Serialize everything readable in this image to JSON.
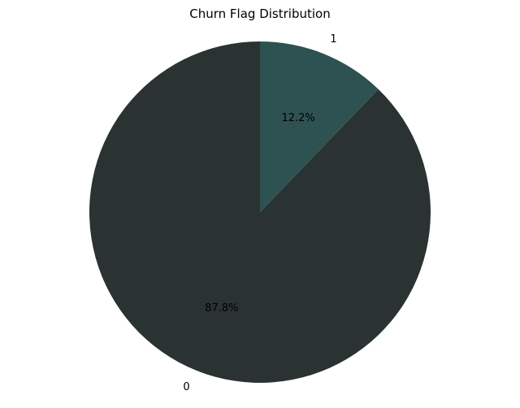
{
  "chart_data": {
    "type": "pie",
    "title": "Churn Flag Distribution",
    "categories": [
      "0",
      "1"
    ],
    "values": [
      87.8,
      12.2
    ],
    "value_labels": [
      "87.8%",
      "12.2%"
    ],
    "colors": [
      "#2b3332",
      "#2e5151"
    ],
    "start_angle_deg": 90,
    "direction": "counterclockwise"
  }
}
